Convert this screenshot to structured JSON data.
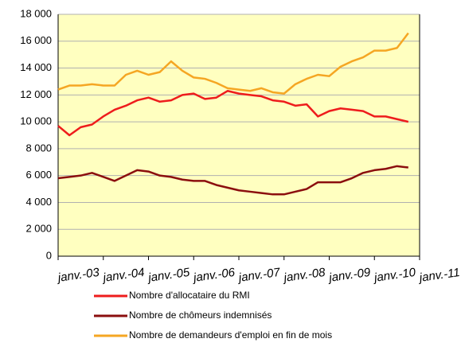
{
  "chart_data": {
    "type": "line",
    "categories": [
      "janv.-03",
      null,
      null,
      null,
      "janv.-04",
      null,
      null,
      null,
      "janv.-05",
      null,
      null,
      null,
      "janv.-06",
      null,
      null,
      null,
      "janv.-07",
      null,
      null,
      null,
      "janv.-08",
      null,
      null,
      null,
      "janv.-09",
      null,
      null,
      null,
      "janv.-10",
      null,
      null,
      null,
      "janv.-11"
    ],
    "series": [
      {
        "name": "Nombre d'allocataire du RMI",
        "color": "#ee1c1c",
        "values": [
          9700,
          9000,
          9600,
          9800,
          10400,
          10900,
          11200,
          11600,
          11800,
          11500,
          11600,
          12000,
          12100,
          11700,
          11800,
          12300,
          12100,
          12000,
          11900,
          11600,
          11500,
          11200,
          11300,
          10400,
          10800,
          11000,
          10900,
          10800,
          10400,
          10400,
          10200,
          10000,
          null
        ]
      },
      {
        "name": "Nombre de chômeurs indemnisés",
        "color": "#8b0e0e",
        "values": [
          5800,
          5900,
          6000,
          6200,
          5900,
          5600,
          6000,
          6400,
          6300,
          6000,
          5900,
          5700,
          5600,
          5600,
          5300,
          5100,
          4900,
          4800,
          4700,
          4600,
          4600,
          4800,
          5000,
          5500,
          5500,
          5500,
          5800,
          6200,
          6400,
          6500,
          6700,
          6600,
          null
        ]
      },
      {
        "name": "Nombre de demandeurs d'emploi en fin de mois",
        "color": "#f5a623",
        "values": [
          12400,
          12700,
          12700,
          12800,
          12700,
          12700,
          13500,
          13800,
          13500,
          13700,
          14500,
          13800,
          13300,
          13200,
          12900,
          12500,
          12400,
          12300,
          12500,
          12200,
          12100,
          12800,
          13200,
          13500,
          13400,
          14100,
          14500,
          14800,
          15300,
          15300,
          15500,
          16600,
          null
        ]
      }
    ],
    "ylim": [
      0,
      18000
    ],
    "yticks": [
      0,
      {
        "value": 2000,
        "label": "2 000"
      },
      {
        "value": 4000,
        "label": "4 000"
      },
      {
        "value": 6000,
        "label": "6 000"
      },
      {
        "value": 8000,
        "label": "8 000"
      },
      {
        "value": 10000,
        "label": "10 000"
      },
      {
        "value": 12000,
        "label": "12 000"
      },
      {
        "value": 14000,
        "label": "14 000"
      },
      {
        "value": 16000,
        "label": "16 000"
      },
      {
        "value": 18000,
        "label": "18 000"
      }
    ],
    "grid": true,
    "legend": "bottom",
    "background": "#ffffc0"
  }
}
